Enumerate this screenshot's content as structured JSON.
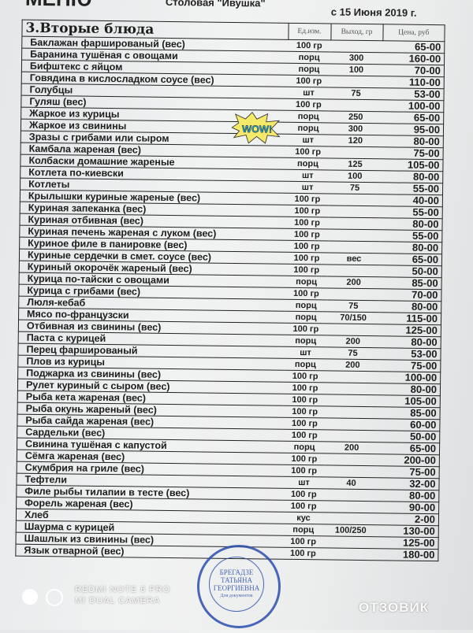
{
  "header": {
    "menu_word": "МЕНЮ",
    "canteen": "Столовая \"Ивушка\"",
    "date": "с 15 Июня 2019 г."
  },
  "table": {
    "section": "3.Вторые блюда",
    "columns": [
      "Ед.изм.",
      "Выход, гр",
      "Цена, руб"
    ],
    "rows": [
      {
        "name": "Баклажан фаршированый (вес)",
        "unit": "100 гр",
        "yield": "",
        "price": "65-00"
      },
      {
        "name": "Баранина тушёная с овощами",
        "unit": "порц",
        "yield": "300",
        "price": "160-00"
      },
      {
        "name": "Бифштекс с яйцом",
        "unit": "порц",
        "yield": "100",
        "price": "70-00"
      },
      {
        "name": "Говядина в кислосладком соусе (вес)",
        "unit": "100 гр",
        "yield": "",
        "price": "110-00"
      },
      {
        "name": "Голубцы",
        "unit": "шт",
        "yield": "75",
        "price": "53-00"
      },
      {
        "name": "Гуляш (вес)",
        "unit": "100 гр",
        "yield": "",
        "price": "100-00"
      },
      {
        "name": "Жаркое из курицы",
        "unit": "порц",
        "yield": "250",
        "price": "65-00"
      },
      {
        "name": "Жаркое из свинины",
        "unit": "порц",
        "yield": "300",
        "price": "95-00"
      },
      {
        "name": "Зразы с грибами или сыром",
        "unit": "шт",
        "yield": "120",
        "price": "80-00"
      },
      {
        "name": "Камбала жареная (вес)",
        "unit": "100 гр",
        "yield": "",
        "price": "75-00"
      },
      {
        "name": "Колбаски домашние жареные",
        "unit": "порц",
        "yield": "125",
        "price": "105-00"
      },
      {
        "name": "Котлета по-киевски",
        "unit": "шт",
        "yield": "100",
        "price": "80-00"
      },
      {
        "name": "Котлеты",
        "unit": "шт",
        "yield": "75",
        "price": "55-00"
      },
      {
        "name": "Крылышки куриные жареные (вес)",
        "unit": "100 гр",
        "yield": "",
        "price": "40-00"
      },
      {
        "name": "Куриная запеканка (вес)",
        "unit": "100 гр",
        "yield": "",
        "price": "55-00"
      },
      {
        "name": "Куриная отбивная (вес)",
        "unit": "100 гр",
        "yield": "",
        "price": "80-00"
      },
      {
        "name": "Куриная печень жареная с луком (вес)",
        "unit": "100 гр",
        "yield": "",
        "price": "55-00"
      },
      {
        "name": "Куриное филе в панировке (вес)",
        "unit": "100 гр",
        "yield": "",
        "price": "80-00"
      },
      {
        "name": "Куриные сердечки в смет. соусе (вес)",
        "unit": "100 гр",
        "yield": "вес",
        "price": "65-00"
      },
      {
        "name": "Куриный окорочёк жареный (вес)",
        "unit": "100 гр",
        "yield": "",
        "price": "50-00"
      },
      {
        "name": "Курица по-тайски с овощами",
        "unit": "порц",
        "yield": "200",
        "price": "85-00"
      },
      {
        "name": "Курица с грибами (вес)",
        "unit": "100 гр",
        "yield": "",
        "price": "70-00"
      },
      {
        "name": "Люля-кебаб",
        "unit": "порц",
        "yield": "75",
        "price": "80-00"
      },
      {
        "name": "Мясо по-французски",
        "unit": "порц",
        "yield": "70/150",
        "price": "115-00"
      },
      {
        "name": "Отбивная из свинины (вес)",
        "unit": "100 гр",
        "yield": "",
        "price": "125-00"
      },
      {
        "name": "Паста с курицей",
        "unit": "порц",
        "yield": "200",
        "price": "80-00"
      },
      {
        "name": "Перец фаршированый",
        "unit": "шт",
        "yield": "75",
        "price": "53-00"
      },
      {
        "name": "Плов из курицы",
        "unit": "порц",
        "yield": "200",
        "price": "75-00"
      },
      {
        "name": "Поджарка из свинины (вес)",
        "unit": "100 гр",
        "yield": "",
        "price": "100-00"
      },
      {
        "name": "Рулет куриный с сыром (вес)",
        "unit": "100 гр",
        "yield": "",
        "price": "80-00"
      },
      {
        "name": "Рыба кета жареная (вес)",
        "unit": "100 гр",
        "yield": "",
        "price": "105-00"
      },
      {
        "name": "Рыба окунь жареный (вес)",
        "unit": "100 гр",
        "yield": "",
        "price": "85-00"
      },
      {
        "name": "Рыба сайда жареная (вес)",
        "unit": "100 гр",
        "yield": "",
        "price": "60-00"
      },
      {
        "name": "Сардельки (вес)",
        "unit": "100 гр",
        "yield": "",
        "price": "50-00"
      },
      {
        "name": "Свинина тушёная с капустой",
        "unit": "порц",
        "yield": "200",
        "price": "65-00"
      },
      {
        "name": "Сёмга жареная (вес)",
        "unit": "100 гр",
        "yield": "",
        "price": "200-00"
      },
      {
        "name": "Скумбрия на гриле (вес)",
        "unit": "100 гр",
        "yield": "",
        "price": "75-00"
      },
      {
        "name": "Тефтели",
        "unit": "шт",
        "yield": "40",
        "price": "32-00"
      },
      {
        "name": "Филе рыбы тилапии в тесте (вес)",
        "unit": "100 гр",
        "yield": "",
        "price": "80-00"
      },
      {
        "name": "Форель жареная (вес)",
        "unit": "100 гр",
        "yield": "",
        "price": "90-00"
      },
      {
        "name": "Хлеб",
        "unit": "кус",
        "yield": "",
        "price": "2-00"
      },
      {
        "name": "Шаурма с курицей",
        "unit": "порц",
        "yield": "100/250",
        "price": "130-00"
      },
      {
        "name": "Шашлык из свинины (вес)",
        "unit": "100 гр",
        "yield": "",
        "price": "125-00"
      },
      {
        "name": "Язык отварной (вес)",
        "unit": "100 гр",
        "yield": "",
        "price": "180-00"
      }
    ]
  },
  "sticker": {
    "text": "WOW!"
  },
  "stamp": {
    "line1": "БРЕГАДЗЕ",
    "line2": "ТАТЬЯНА",
    "line3": "ГЕОРГИЕВНА",
    "line4": "Для документов",
    "ring_text": "ИНДИВИДУАЛЬНЫЙ ПРЕДПРИНИМАТЕЛЬ КРАСНОДАРСКИЙ КРАЙ"
  },
  "watermarks": {
    "camera_line1": "REDMI NOTE 6 PRO",
    "camera_line2": "MI DUAL CAMERA",
    "site": "ОТЗОВИК"
  },
  "colors": {
    "stamp": "#2b4fb0",
    "text": "#1c1c1c"
  }
}
